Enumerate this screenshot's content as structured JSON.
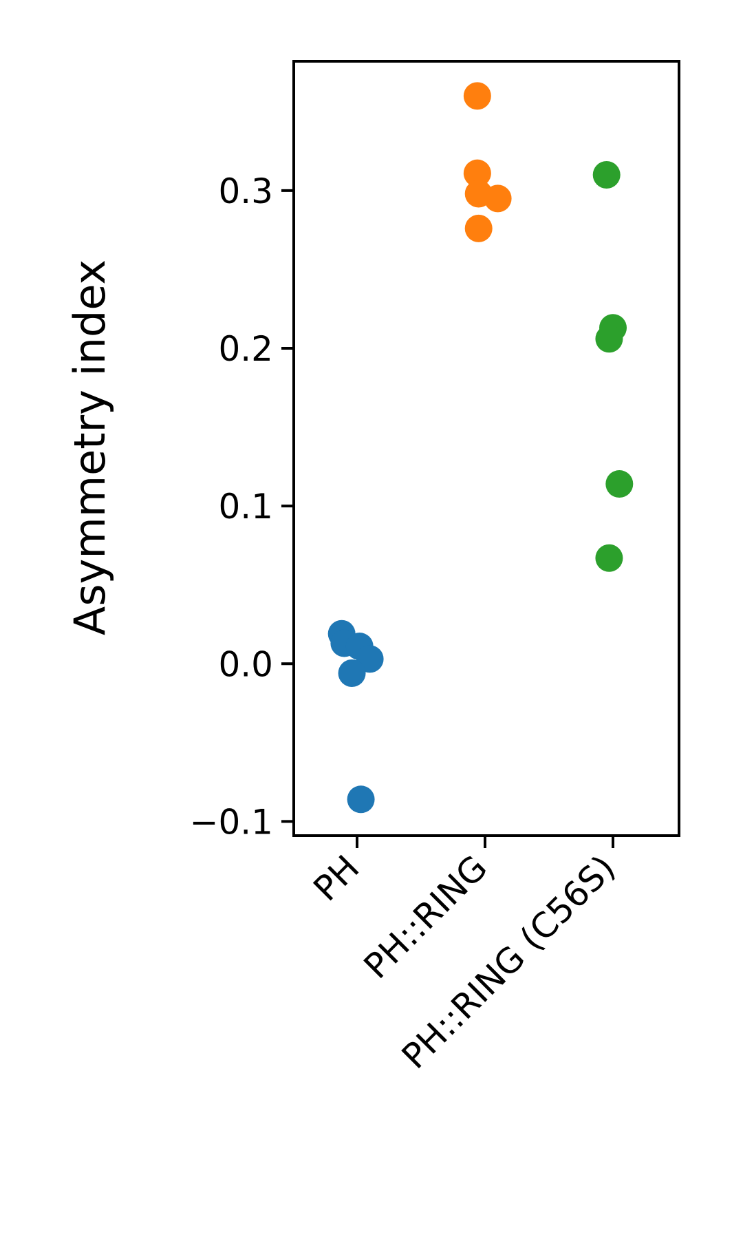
{
  "chart_data": {
    "type": "scatter",
    "title": "",
    "xlabel": "",
    "ylabel": "Asymmetry index",
    "ylim": [
      -0.109,
      0.382
    ],
    "yticks": [
      -0.1,
      0.0,
      0.1,
      0.2,
      0.3
    ],
    "ytick_labels": [
      "−0.1",
      "0.0",
      "0.1",
      "0.2",
      "0.3"
    ],
    "categories": [
      "PH",
      "PH::RING",
      "PH::RING (C56S)"
    ],
    "grid": false,
    "legend": "none",
    "series": [
      {
        "category": "PH",
        "color": "#1f77b4",
        "points": [
          {
            "x": -0.12,
            "y": 0.019
          },
          {
            "x": -0.1,
            "y": 0.013
          },
          {
            "x": 0.02,
            "y": 0.011
          },
          {
            "x": 0.1,
            "y": 0.003
          },
          {
            "x": -0.04,
            "y": -0.006
          },
          {
            "x": 0.03,
            "y": -0.086
          }
        ]
      },
      {
        "category": "PH::RING",
        "color": "#ff7f0e",
        "points": [
          {
            "x": -0.06,
            "y": 0.36
          },
          {
            "x": -0.06,
            "y": 0.311
          },
          {
            "x": -0.05,
            "y": 0.298
          },
          {
            "x": 0.1,
            "y": 0.295
          },
          {
            "x": -0.05,
            "y": 0.276
          }
        ]
      },
      {
        "category": "PH::RING (C56S)",
        "color": "#2ca02c",
        "points": [
          {
            "x": -0.05,
            "y": 0.31
          },
          {
            "x": 0.0,
            "y": 0.213
          },
          {
            "x": -0.03,
            "y": 0.206
          },
          {
            "x": 0.05,
            "y": 0.114
          },
          {
            "x": -0.03,
            "y": 0.067
          }
        ]
      }
    ]
  }
}
